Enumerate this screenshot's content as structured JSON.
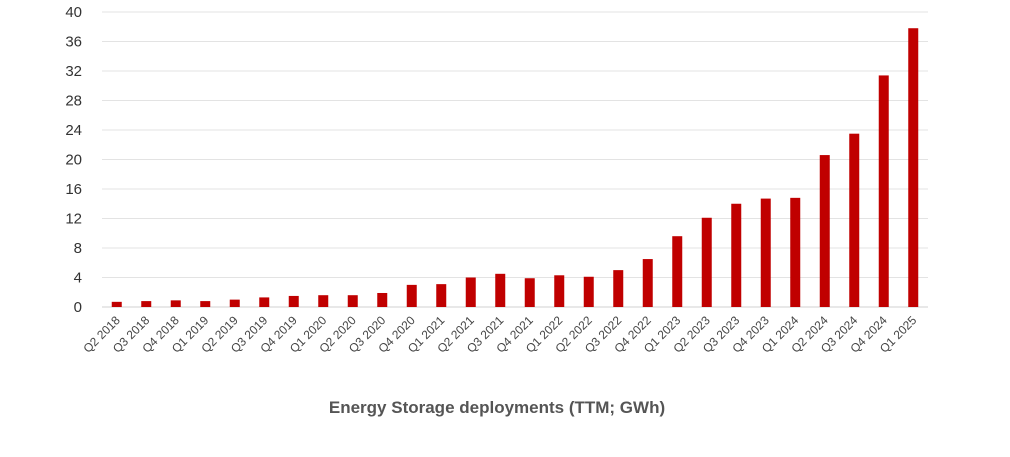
{
  "chart_data": {
    "type": "bar",
    "title": "",
    "xlabel": "Energy Storage deployments (TTM; GWh)",
    "ylabel": "",
    "ylim": [
      0,
      40
    ],
    "yticks": [
      0,
      4,
      8,
      12,
      16,
      20,
      24,
      28,
      32,
      36,
      40
    ],
    "grid": true,
    "legend": "none",
    "bar_color": "#c00000",
    "categories": [
      "Q2 2018",
      "Q3 2018",
      "Q4 2018",
      "Q1 2019",
      "Q2 2019",
      "Q3 2019",
      "Q4 2019",
      "Q1 2020",
      "Q2 2020",
      "Q3 2020",
      "Q4 2020",
      "Q1 2021",
      "Q2 2021",
      "Q3 2021",
      "Q4 2021",
      "Q1 2022",
      "Q2 2022",
      "Q3 2022",
      "Q4 2022",
      "Q1 2023",
      "Q2 2023",
      "Q3 2023",
      "Q4 2023",
      "Q1 2024",
      "Q2 2024",
      "Q3 2024",
      "Q4 2024",
      "Q1 2025"
    ],
    "values": [
      0.7,
      0.8,
      0.9,
      0.8,
      1.0,
      1.3,
      1.5,
      1.6,
      1.6,
      1.9,
      3.0,
      3.1,
      4.0,
      4.5,
      3.9,
      4.3,
      4.1,
      5.0,
      6.5,
      9.6,
      12.1,
      14.0,
      14.7,
      14.8,
      20.6,
      23.5,
      31.4,
      37.8
    ]
  }
}
